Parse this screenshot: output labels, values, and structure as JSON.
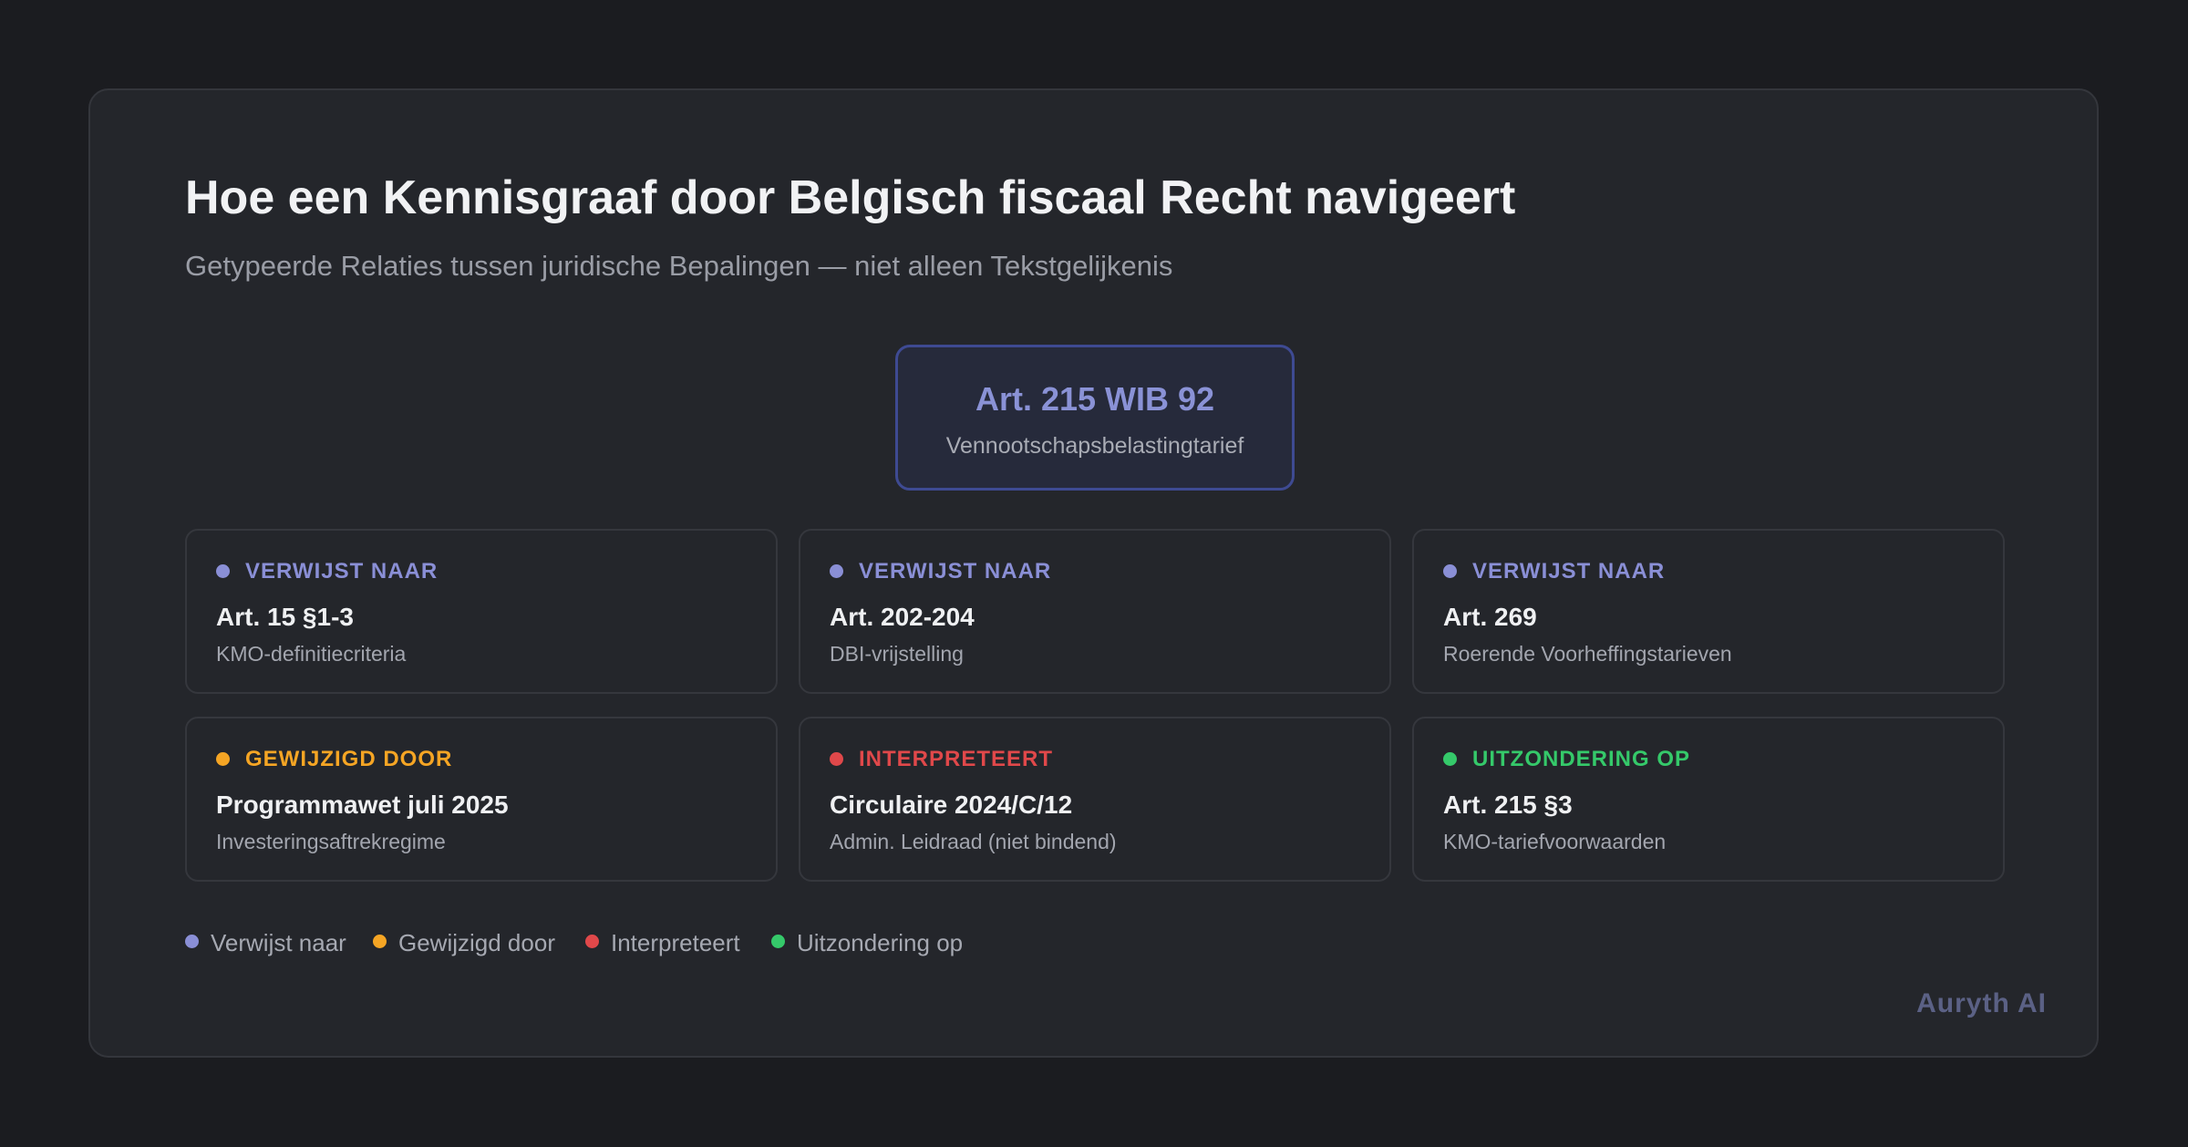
{
  "title": "Hoe een Kennisgraaf door Belgisch fiscaal Recht navigeert",
  "subtitle": "Getypeerde Relaties tussen juridische Bepalingen — niet alleen Tekstgelijkenis",
  "center": {
    "title": "Art. 215 WIB 92",
    "subtitle": "Vennootschapsbelastingtarief"
  },
  "colors": {
    "verwijst": "#8a8fd6",
    "gewijzigd": "#f5a524",
    "interpreteert": "#e0484a",
    "uitzondering": "#35c96a"
  },
  "cards": [
    {
      "relation": "VERWIJST NAAR",
      "name": "Art. 15 §1-3",
      "description": "KMO-definitiecriteria"
    },
    {
      "relation": "VERWIJST NAAR",
      "name": "Art. 202-204",
      "description": "DBI-vrijstelling"
    },
    {
      "relation": "VERWIJST NAAR",
      "name": "Art. 269",
      "description": "Roerende Voorheffingstarieven"
    },
    {
      "relation": "GEWIJZIGD DOOR",
      "name": "Programmawet juli 2025",
      "description": "Investeringsaftrekregime"
    },
    {
      "relation": "INTERPRETEERT",
      "name": "Circulaire 2024/C/12",
      "description": "Admin. Leidraad (niet bindend)"
    },
    {
      "relation": "UITZONDERING OP",
      "name": "Art. 215 §3",
      "description": "KMO-tariefvoorwaarden"
    }
  ],
  "legend": [
    {
      "label": "Verwijst naar"
    },
    {
      "label": "Gewijzigd door"
    },
    {
      "label": "Interpreteert"
    },
    {
      "label": "Uitzondering op"
    }
  ],
  "brand": "Auryth AI"
}
